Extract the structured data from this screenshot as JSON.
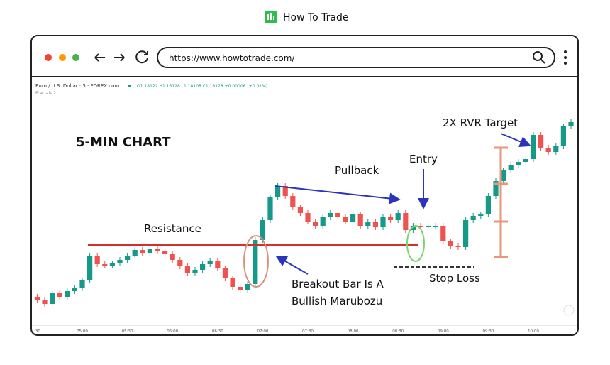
{
  "brand": "How To Trade",
  "url": "https://www.howtotrade.com/",
  "chart_data": {
    "type": "candlestick",
    "title": "Euro / U.S. Dollar · 5 · FOREX.com",
    "subtitle": "O1.18122 H1.18128 L1.18108 C1.18128 +0.00006 (+0.01%)",
    "indicator": "Fractals 2",
    "annotations": {
      "chart_label": "5-MIN CHART",
      "resistance": "Resistance",
      "pullback": "Pullback",
      "entry": "Entry",
      "target": "2X RVR Target",
      "breakout_1": "Breakout Bar Is A",
      "breakout_2": "Bullish Marubozu",
      "stop": "Stop Loss"
    },
    "up_color": "#159a8a",
    "down_color": "#ef5350",
    "ylim": [
      1.1784,
      1.18182
    ],
    "categories": [
      ":30",
      null,
      null,
      null,
      null,
      null,
      "05:00",
      null,
      null,
      null,
      null,
      null,
      "05:30",
      null,
      null,
      null,
      null,
      null,
      "06:00",
      null,
      null,
      null,
      null,
      null,
      "06:30",
      null,
      null,
      null,
      null,
      null,
      "07:00",
      null,
      null,
      null,
      null,
      null,
      "07:30",
      null,
      null,
      null,
      null,
      null,
      "08:00",
      null,
      null,
      null,
      null,
      null,
      "08:30",
      null,
      null,
      null,
      null,
      null,
      "09:00",
      null,
      null,
      null,
      null,
      null,
      "09:30",
      null,
      null,
      null,
      null,
      null,
      "10:00",
      null,
      null,
      null,
      null,
      null
    ],
    "open": [
      1.17882,
      1.17878,
      1.17872,
      1.17888,
      1.17882,
      1.1789,
      1.17894,
      1.17905,
      1.1794,
      1.17928,
      1.17926,
      1.17929,
      1.17934,
      1.1794,
      1.17948,
      1.17944,
      1.17949,
      1.17947,
      1.17943,
      1.17934,
      1.17925,
      1.17915,
      1.1792,
      1.17928,
      1.17932,
      1.17922,
      1.17908,
      1.17896,
      1.17892,
      1.179,
      1.17962,
      1.1799,
      1.18022,
      1.18038,
      1.18024,
      1.18008,
      1.18,
      1.17988,
      1.17982,
      1.17994,
      1.18,
      1.17994,
      1.17988,
      1.17998,
      1.17982,
      1.17988,
      1.1798,
      1.17995,
      1.1799,
      1.18,
      1.17976,
      1.17982,
      1.1798,
      1.17982,
      1.17982,
      1.1796,
      1.17954,
      1.17952,
      1.1799,
      1.17996,
      1.17998,
      1.18024,
      1.18045,
      1.1806,
      1.18068,
      1.18072,
      1.18076,
      1.1811,
      1.18092,
      1.18086,
      1.18094,
      1.18122
    ],
    "close": [
      1.17878,
      1.17872,
      1.17888,
      1.17882,
      1.1789,
      1.17894,
      1.17905,
      1.1794,
      1.17928,
      1.17926,
      1.17929,
      1.17934,
      1.1794,
      1.17948,
      1.17944,
      1.17949,
      1.17947,
      1.17943,
      1.17934,
      1.17925,
      1.17915,
      1.1792,
      1.17928,
      1.17932,
      1.17922,
      1.17908,
      1.17896,
      1.17892,
      1.179,
      1.17962,
      1.1799,
      1.18022,
      1.18038,
      1.18024,
      1.18008,
      1.18,
      1.17988,
      1.17982,
      1.17994,
      1.18,
      1.17994,
      1.17988,
      1.17998,
      1.17982,
      1.17988,
      1.1798,
      1.17995,
      1.1799,
      1.18,
      1.17976,
      1.17982,
      1.1798,
      1.17982,
      1.17982,
      1.1796,
      1.17954,
      1.17952,
      1.1799,
      1.17996,
      1.17998,
      1.18024,
      1.18045,
      1.1806,
      1.18068,
      1.18072,
      1.18076,
      1.1811,
      1.18092,
      1.18086,
      1.18094,
      1.18122,
      1.18128
    ]
  }
}
